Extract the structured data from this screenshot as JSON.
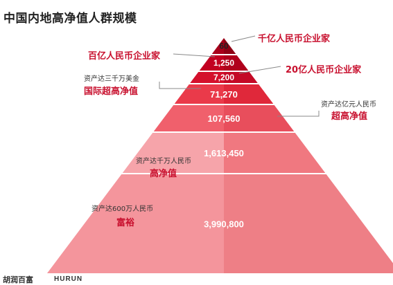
{
  "title": "中国内地高净值人群规模",
  "chart_data": {
    "type": "pyramid",
    "tiers": [
      {
        "value": "60",
        "label_main": "千亿人民币企业家",
        "label_sub": ""
      },
      {
        "value": "1,250",
        "label_main": "百亿人民币企业家",
        "label_sub": ""
      },
      {
        "value": "7,200",
        "label_main": "20亿人民币企业家",
        "label_sub": ""
      },
      {
        "value": "71,270",
        "label_main": "国际超高净值",
        "label_sub": "资产达三千万美金"
      },
      {
        "value": "107,560",
        "label_main": "超高净值",
        "label_sub": "资产达亿元人民币"
      },
      {
        "value": "1,613,450",
        "label_main": "高净值",
        "label_sub": "资产达千万人民币"
      },
      {
        "value": "3,990,800",
        "label_main": "富裕",
        "label_sub": "资产达600万人民币"
      }
    ]
  },
  "footer": {
    "brand_cn": "胡润百富",
    "brand_en": "HURUN"
  }
}
